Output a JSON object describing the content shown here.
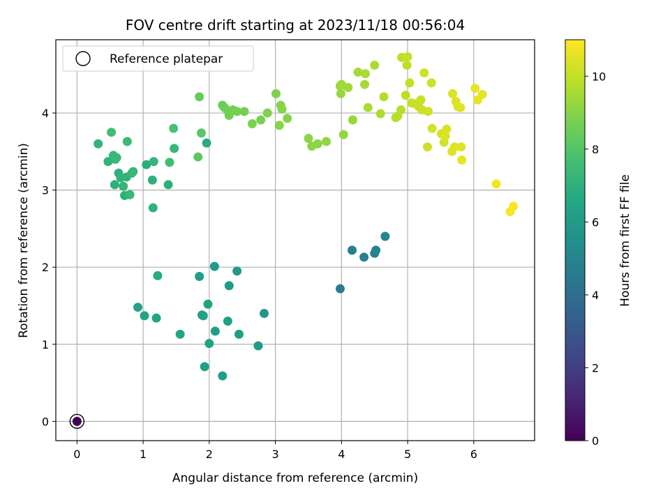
{
  "chart_data": {
    "type": "scatter",
    "title": "FOV centre drift starting at 2023/11/18 00:56:04",
    "xlabel": "Angular distance from reference (arcmin)",
    "ylabel": "Rotation from reference (arcmin)",
    "xlim": [
      -0.32,
      6.92
    ],
    "ylim": [
      -0.25,
      4.95
    ],
    "xticks": [
      0,
      1,
      2,
      3,
      4,
      5,
      6
    ],
    "yticks": [
      0,
      1,
      2,
      3,
      4
    ],
    "grid": true,
    "legend": {
      "position": "top-left",
      "entries": [
        "Reference platepar"
      ]
    },
    "colorbar": {
      "label": "Hours from first FF file",
      "range": [
        0,
        11
      ],
      "ticks": [
        0,
        2,
        4,
        6,
        8,
        10
      ],
      "colormap": "viridis"
    },
    "reference": {
      "x": 0,
      "y": 0,
      "hours": 0
    },
    "points": [
      {
        "x": 0.32,
        "y": 3.6,
        "h": 7.1
      },
      {
        "x": 0.47,
        "y": 3.37,
        "h": 7.1
      },
      {
        "x": 0.52,
        "y": 3.75,
        "h": 7.6
      },
      {
        "x": 0.55,
        "y": 3.45,
        "h": 7.3
      },
      {
        "x": 0.58,
        "y": 3.4,
        "h": 7.2
      },
      {
        "x": 0.6,
        "y": 3.42,
        "h": 7.4
      },
      {
        "x": 0.57,
        "y": 3.07,
        "h": 7.0
      },
      {
        "x": 0.63,
        "y": 3.22,
        "h": 7.0
      },
      {
        "x": 0.66,
        "y": 3.16,
        "h": 7.1
      },
      {
        "x": 0.7,
        "y": 3.05,
        "h": 7.2
      },
      {
        "x": 0.72,
        "y": 2.93,
        "h": 7.0
      },
      {
        "x": 0.75,
        "y": 3.17,
        "h": 7.1
      },
      {
        "x": 0.76,
        "y": 3.63,
        "h": 7.4
      },
      {
        "x": 0.8,
        "y": 2.94,
        "h": 7.3
      },
      {
        "x": 0.83,
        "y": 3.22,
        "h": 7.2
      },
      {
        "x": 0.85,
        "y": 3.24,
        "h": 7.3
      },
      {
        "x": 1.05,
        "y": 3.33,
        "h": 6.9
      },
      {
        "x": 1.14,
        "y": 3.13,
        "h": 7.0
      },
      {
        "x": 1.16,
        "y": 3.37,
        "h": 7.2
      },
      {
        "x": 1.15,
        "y": 2.77,
        "h": 7.1
      },
      {
        "x": 1.38,
        "y": 3.07,
        "h": 7.0
      },
      {
        "x": 1.4,
        "y": 3.36,
        "h": 7.6
      },
      {
        "x": 1.46,
        "y": 3.8,
        "h": 7.8
      },
      {
        "x": 1.47,
        "y": 3.54,
        "h": 7.3
      },
      {
        "x": 1.83,
        "y": 3.43,
        "h": 8.2
      },
      {
        "x": 1.85,
        "y": 4.21,
        "h": 8.4
      },
      {
        "x": 1.88,
        "y": 3.74,
        "h": 8.1
      },
      {
        "x": 1.96,
        "y": 3.61,
        "h": 6.8
      },
      {
        "x": 2.2,
        "y": 4.1,
        "h": 8.5
      },
      {
        "x": 2.23,
        "y": 4.07,
        "h": 8.5
      },
      {
        "x": 2.27,
        "y": 4.04,
        "h": 8.6
      },
      {
        "x": 2.3,
        "y": 3.97,
        "h": 8.6
      },
      {
        "x": 2.33,
        "y": 4.02,
        "h": 8.6
      },
      {
        "x": 2.36,
        "y": 4.04,
        "h": 8.7
      },
      {
        "x": 2.42,
        "y": 4.02,
        "h": 8.7
      },
      {
        "x": 2.53,
        "y": 4.02,
        "h": 8.7
      },
      {
        "x": 2.65,
        "y": 3.86,
        "h": 8.8
      },
      {
        "x": 2.78,
        "y": 3.91,
        "h": 8.8
      },
      {
        "x": 2.88,
        "y": 4.0,
        "h": 8.9
      },
      {
        "x": 3.01,
        "y": 4.25,
        "h": 8.9
      },
      {
        "x": 3.06,
        "y": 3.84,
        "h": 9.0
      },
      {
        "x": 3.08,
        "y": 4.1,
        "h": 9.0
      },
      {
        "x": 3.1,
        "y": 4.05,
        "h": 9.0
      },
      {
        "x": 3.18,
        "y": 3.93,
        "h": 9.0
      },
      {
        "x": 3.5,
        "y": 3.67,
        "h": 9.1
      },
      {
        "x": 3.55,
        "y": 3.57,
        "h": 9.1
      },
      {
        "x": 3.64,
        "y": 3.6,
        "h": 9.1
      },
      {
        "x": 3.77,
        "y": 3.63,
        "h": 9.2
      },
      {
        "x": 3.98,
        "y": 4.35,
        "h": 9.3
      },
      {
        "x": 3.99,
        "y": 4.25,
        "h": 9.3
      },
      {
        "x": 4.0,
        "y": 4.37,
        "h": 9.4
      },
      {
        "x": 4.03,
        "y": 3.72,
        "h": 9.2
      },
      {
        "x": 4.1,
        "y": 4.33,
        "h": 9.4
      },
      {
        "x": 4.17,
        "y": 3.91,
        "h": 9.3
      },
      {
        "x": 4.25,
        "y": 4.53,
        "h": 9.5
      },
      {
        "x": 4.35,
        "y": 4.37,
        "h": 9.5
      },
      {
        "x": 4.36,
        "y": 4.51,
        "h": 9.6
      },
      {
        "x": 4.4,
        "y": 4.07,
        "h": 9.6
      },
      {
        "x": 4.5,
        "y": 4.62,
        "h": 9.6
      },
      {
        "x": 4.59,
        "y": 3.99,
        "h": 9.7
      },
      {
        "x": 4.64,
        "y": 4.21,
        "h": 9.7
      },
      {
        "x": 4.82,
        "y": 3.94,
        "h": 9.8
      },
      {
        "x": 4.85,
        "y": 3.96,
        "h": 9.8
      },
      {
        "x": 4.9,
        "y": 4.04,
        "h": 9.8
      },
      {
        "x": 4.91,
        "y": 4.72,
        "h": 9.9
      },
      {
        "x": 4.97,
        "y": 4.23,
        "h": 9.9
      },
      {
        "x": 4.99,
        "y": 4.62,
        "h": 9.9
      },
      {
        "x": 5.0,
        "y": 4.73,
        "h": 10.0
      },
      {
        "x": 5.03,
        "y": 4.39,
        "h": 10.0
      },
      {
        "x": 5.06,
        "y": 4.13,
        "h": 10.0
      },
      {
        "x": 5.11,
        "y": 4.12,
        "h": 10.1
      },
      {
        "x": 5.17,
        "y": 4.08,
        "h": 10.1
      },
      {
        "x": 5.2,
        "y": 4.17,
        "h": 10.1
      },
      {
        "x": 5.22,
        "y": 4.04,
        "h": 10.1
      },
      {
        "x": 5.25,
        "y": 4.52,
        "h": 10.2
      },
      {
        "x": 5.3,
        "y": 3.56,
        "h": 10.2
      },
      {
        "x": 5.31,
        "y": 4.02,
        "h": 10.2
      },
      {
        "x": 5.36,
        "y": 4.39,
        "h": 10.2
      },
      {
        "x": 5.37,
        "y": 3.8,
        "h": 10.3
      },
      {
        "x": 5.51,
        "y": 3.73,
        "h": 10.3
      },
      {
        "x": 5.55,
        "y": 3.62,
        "h": 10.3
      },
      {
        "x": 5.57,
        "y": 3.7,
        "h": 10.4
      },
      {
        "x": 5.59,
        "y": 3.79,
        "h": 10.4
      },
      {
        "x": 5.67,
        "y": 3.5,
        "h": 10.5
      },
      {
        "x": 5.68,
        "y": 4.25,
        "h": 10.4
      },
      {
        "x": 5.71,
        "y": 3.56,
        "h": 10.5
      },
      {
        "x": 5.73,
        "y": 4.15,
        "h": 10.5
      },
      {
        "x": 5.76,
        "y": 4.08,
        "h": 10.5
      },
      {
        "x": 5.8,
        "y": 4.07,
        "h": 10.5
      },
      {
        "x": 5.81,
        "y": 3.56,
        "h": 10.5
      },
      {
        "x": 5.82,
        "y": 3.39,
        "h": 10.6
      },
      {
        "x": 6.02,
        "y": 4.32,
        "h": 10.6
      },
      {
        "x": 6.06,
        "y": 4.17,
        "h": 10.6
      },
      {
        "x": 6.13,
        "y": 4.24,
        "h": 10.6
      },
      {
        "x": 6.34,
        "y": 3.08,
        "h": 10.8
      },
      {
        "x": 6.55,
        "y": 2.72,
        "h": 10.9
      },
      {
        "x": 6.6,
        "y": 2.79,
        "h": 10.9
      },
      {
        "x": 3.98,
        "y": 1.72,
        "h": 4.6
      },
      {
        "x": 4.16,
        "y": 2.22,
        "h": 4.7
      },
      {
        "x": 4.34,
        "y": 2.13,
        "h": 4.8
      },
      {
        "x": 4.5,
        "y": 2.18,
        "h": 4.9
      },
      {
        "x": 4.52,
        "y": 2.22,
        "h": 4.9
      },
      {
        "x": 4.66,
        "y": 2.4,
        "h": 5.0
      },
      {
        "x": 0.92,
        "y": 1.48,
        "h": 6.3
      },
      {
        "x": 1.02,
        "y": 1.37,
        "h": 6.4
      },
      {
        "x": 1.2,
        "y": 1.34,
        "h": 6.4
      },
      {
        "x": 1.22,
        "y": 1.89,
        "h": 6.8
      },
      {
        "x": 1.56,
        "y": 1.13,
        "h": 6.6
      },
      {
        "x": 1.85,
        "y": 1.88,
        "h": 6.1
      },
      {
        "x": 1.89,
        "y": 1.38,
        "h": 6.2
      },
      {
        "x": 1.91,
        "y": 1.37,
        "h": 6.2
      },
      {
        "x": 1.93,
        "y": 0.71,
        "h": 6.2
      },
      {
        "x": 1.98,
        "y": 1.52,
        "h": 6.2
      },
      {
        "x": 2.0,
        "y": 1.01,
        "h": 6.3
      },
      {
        "x": 2.08,
        "y": 2.01,
        "h": 6.0
      },
      {
        "x": 2.09,
        "y": 1.17,
        "h": 6.1
      },
      {
        "x": 2.2,
        "y": 0.59,
        "h": 6.1
      },
      {
        "x": 2.28,
        "y": 1.3,
        "h": 6.2
      },
      {
        "x": 2.3,
        "y": 1.76,
        "h": 6.0
      },
      {
        "x": 2.42,
        "y": 1.95,
        "h": 6.0
      },
      {
        "x": 2.45,
        "y": 1.13,
        "h": 6.1
      },
      {
        "x": 2.74,
        "y": 0.98,
        "h": 5.9
      },
      {
        "x": 2.83,
        "y": 1.4,
        "h": 5.8
      }
    ]
  }
}
